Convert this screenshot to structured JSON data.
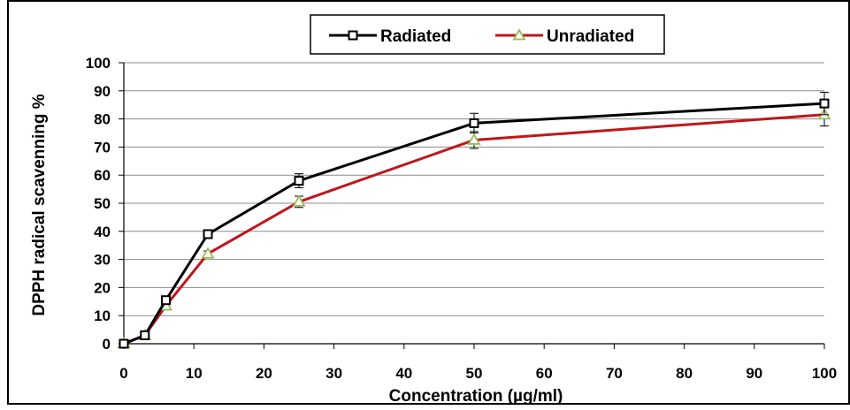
{
  "chart_data": {
    "type": "line",
    "title": "",
    "xlabel": "Concentration (µg/ml)",
    "ylabel": "DPPH radical scavenning %",
    "xlim": [
      0,
      100
    ],
    "ylim": [
      0,
      100
    ],
    "x_ticks": [
      0,
      10,
      20,
      30,
      40,
      50,
      60,
      70,
      80,
      90,
      100
    ],
    "y_ticks": [
      0,
      10,
      20,
      30,
      40,
      50,
      60,
      70,
      80,
      90,
      100
    ],
    "grid": "horizontal",
    "legend_position": "top",
    "x": [
      0,
      3,
      6,
      12,
      25,
      50,
      100
    ],
    "series": [
      {
        "name": "Radiated",
        "color": "#000000",
        "marker": "square",
        "values": [
          0,
          3,
          15.5,
          39,
          58,
          78.5,
          85.5
        ],
        "errors": [
          0.5,
          1,
          1,
          1.5,
          2.5,
          3.5,
          4
        ]
      },
      {
        "name": "Unradiated",
        "color": "#c0151b",
        "marker_color": "#9bbb59",
        "marker": "triangle",
        "values": [
          0,
          3,
          13.5,
          32,
          50.5,
          72.5,
          81.5
        ],
        "errors": [
          0.5,
          1,
          1,
          1,
          2,
          3,
          4
        ]
      }
    ]
  }
}
